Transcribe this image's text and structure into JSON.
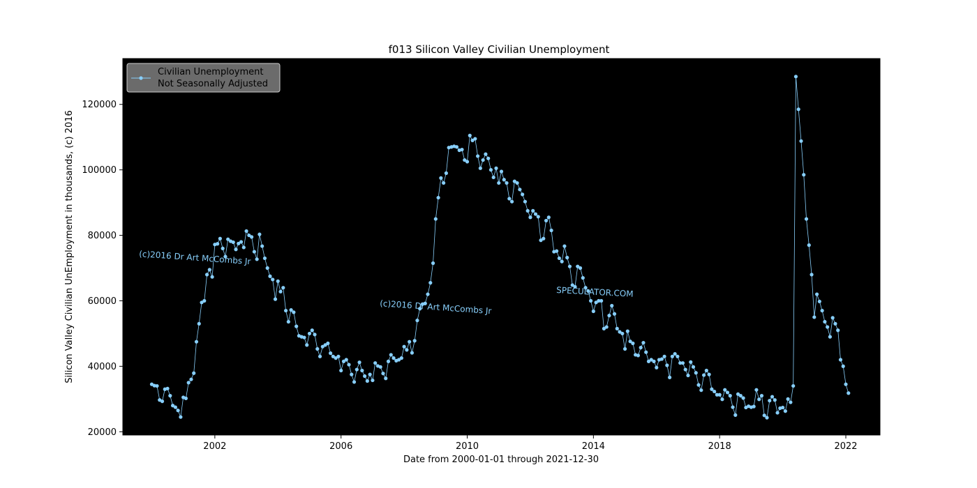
{
  "chart_data": {
    "type": "line",
    "title": "f013 Silicon Valley Civilian Unemployment",
    "xlabel": "Date from 2000-01-01 through 2021-12-30",
    "ylabel": "Silicon Valley Civilian UnEmployment in thousands, (c) 2016",
    "x_ticks": [
      "2002",
      "2006",
      "2010",
      "2014",
      "2018",
      "2022"
    ],
    "y_ticks": [
      "20000",
      "40000",
      "60000",
      "80000",
      "100000",
      "120000"
    ],
    "xlim": [
      "1999-02",
      "2023-02"
    ],
    "ylim": [
      19000,
      134000
    ],
    "legend": {
      "placement": "upper left",
      "label_line1": "Civilian Unemployment",
      "label_line2": "Not Seasonally Adjusted"
    },
    "colors": {
      "series": "#87cefa",
      "plot_background": "#000000",
      "legend_background": "#6b6b6b",
      "watermark": "#87cefa"
    },
    "watermarks": [
      "(c)2016 Dr Art McCombs Jr",
      "(c)2016 Dr Art McCombs Jr",
      "SPECULATOR.COM"
    ],
    "series": [
      {
        "name": "Civilian Unemployment Not Seasonally Adjusted",
        "start": "2000-01",
        "frequency": "monthly",
        "values": [
          34500,
          34100,
          34000,
          29700,
          29300,
          33000,
          33200,
          31000,
          28000,
          27500,
          26500,
          24500,
          30500,
          30200,
          35000,
          36000,
          37900,
          47500,
          53000,
          59500,
          60000,
          68000,
          69500,
          67300,
          77200,
          77400,
          79000,
          76000,
          73500,
          78800,
          78200,
          77900,
          75700,
          77500,
          78000,
          76300,
          81300,
          80000,
          79500,
          75000,
          72700,
          80300,
          76700,
          73000,
          70000,
          67500,
          66500,
          60500,
          66000,
          62800,
          64000,
          57000,
          53600,
          57200,
          56500,
          52200,
          49300,
          49000,
          48800,
          46500,
          50000,
          51000,
          49700,
          45300,
          43000,
          46000,
          46500,
          47000,
          44000,
          43000,
          42500,
          43000,
          38700,
          41500,
          42000,
          40500,
          37500,
          35200,
          39000,
          41200,
          38700,
          37000,
          35500,
          37500,
          35700,
          41000,
          40100,
          39800,
          37800,
          36300,
          41500,
          43500,
          42500,
          41700,
          42000,
          42500,
          46000,
          45000,
          47500,
          44100,
          47800,
          54000,
          57600,
          59000,
          59200,
          62000,
          65500,
          71500,
          85000,
          91500,
          97500,
          96000,
          99000,
          106800,
          107000,
          107200,
          107000,
          106000,
          106200,
          103000,
          102500,
          110500,
          109000,
          109500,
          104200,
          100500,
          103000,
          104800,
          103500,
          100000,
          97700,
          100500,
          96000,
          99500,
          97000,
          96000,
          91200,
          90300,
          96500,
          96000,
          94000,
          92500,
          90300,
          87500,
          85500,
          87500,
          86500,
          85700,
          78500,
          79000,
          84500,
          85500,
          81500,
          75000,
          75200,
          73000,
          72000,
          76700,
          73200,
          70500,
          64800,
          64300,
          70500,
          70000,
          67000,
          64000,
          63000,
          60000,
          56800,
          59500,
          60000,
          60000,
          51500,
          52000,
          55500,
          58500,
          56000,
          51500,
          50500,
          50000,
          45300,
          50700,
          47600,
          47000,
          43500,
          43300,
          45700,
          47200,
          44300,
          41500,
          42000,
          41500,
          39600,
          42000,
          42200,
          43000,
          40300,
          36600,
          43000,
          43800,
          43000,
          41000,
          41000,
          39000,
          37200,
          41300,
          39800,
          38000,
          34300,
          32700,
          37300,
          38700,
          37500,
          33000,
          32300,
          31300,
          31300,
          29900,
          32800,
          32000,
          31000,
          27500,
          25100,
          31500,
          31000,
          30300,
          27400,
          27800,
          27500,
          27700,
          32800,
          29900,
          31000,
          25000,
          24300,
          29500,
          30700,
          29700,
          25800,
          27200,
          27400,
          26300,
          30000,
          29000,
          34000,
          128500,
          118500,
          108800,
          98500,
          85000,
          77000,
          68000,
          55000,
          62000,
          59800,
          57000,
          53600,
          52000,
          49000,
          54800,
          53000,
          51000,
          42000,
          40000,
          34500,
          31800
        ]
      }
    ]
  }
}
